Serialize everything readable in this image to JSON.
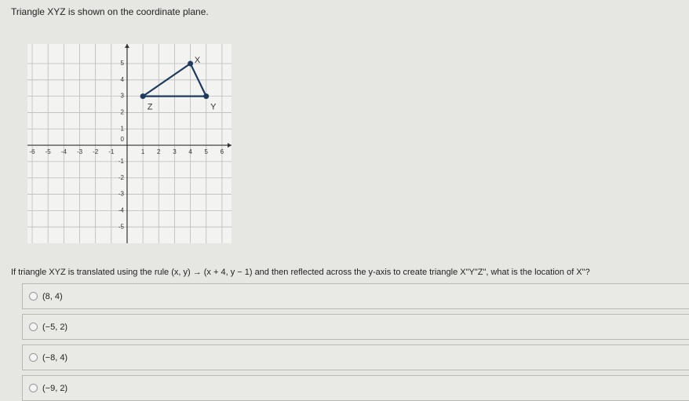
{
  "question": "Triangle XYZ is shown on the coordinate plane.",
  "graph": {
    "origin_label": "0",
    "xlim": [
      -6.3,
      6.6
    ],
    "ylim": [
      -6,
      6.2
    ],
    "xticks": [
      -6,
      -5,
      -4,
      -3,
      -2,
      -1,
      1,
      2,
      3,
      4,
      5,
      6
    ],
    "yticks": [
      -5,
      -4,
      -3,
      -2,
      -1,
      1,
      2,
      3,
      4,
      5
    ],
    "color": "#1f3a5f",
    "points": [
      {
        "label": "X",
        "x": 4,
        "y": 5
      },
      {
        "label": "Y",
        "x": 5,
        "y": 3
      },
      {
        "label": "Z",
        "x": 1,
        "y": 3
      }
    ]
  },
  "prompt": "If triangle XYZ is translated using the rule (x, y) → (x + 4, y − 1) and then reflected across the y-axis to create triangle X\"Y\"Z\", what is the location of X\"?",
  "options": [
    "(8, 4)",
    "(−5, 2)",
    "(−8, 4)",
    "(−9, 2)"
  ]
}
